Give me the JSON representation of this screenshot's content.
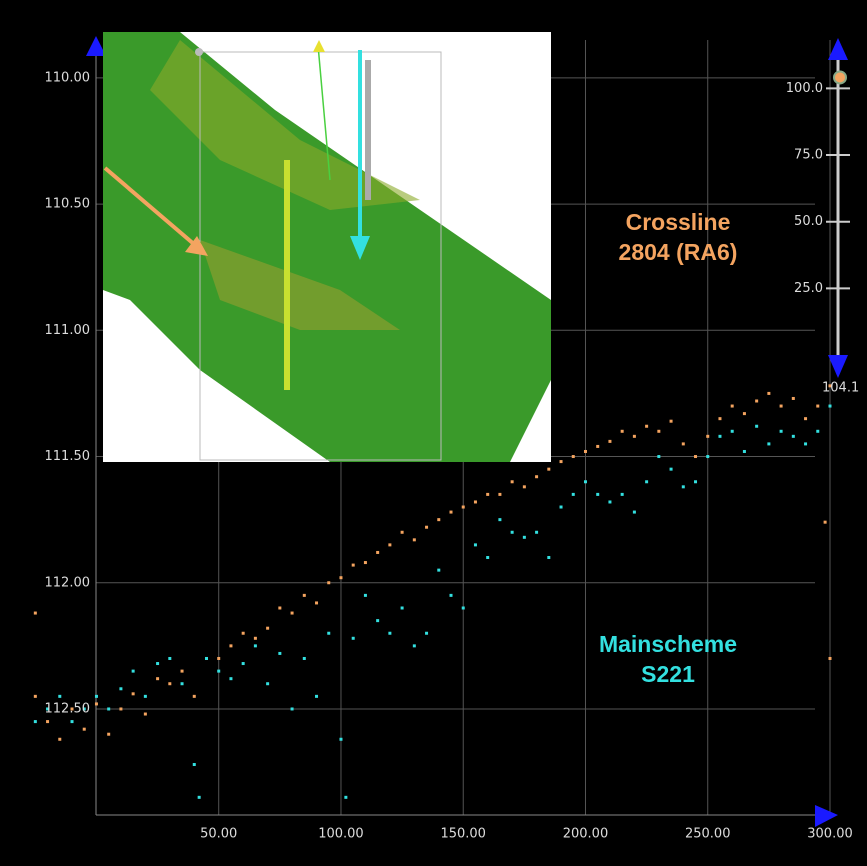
{
  "chart_data": {
    "type": "scatter",
    "xlim": [
      -28,
      300
    ],
    "ylim": [
      109.85,
      112.92
    ],
    "y_inverted": true,
    "grid": true,
    "xticks": [
      {
        "value": 50,
        "label": "50.00"
      },
      {
        "value": 100,
        "label": "100.00"
      },
      {
        "value": 150,
        "label": "150.00"
      },
      {
        "value": 200,
        "label": "200.00"
      },
      {
        "value": 250,
        "label": "250.00"
      },
      {
        "value": 300,
        "label": "300.00"
      }
    ],
    "yticks": [
      {
        "value": 110,
        "label": "110.00"
      },
      {
        "value": 110.5,
        "label": "110.50"
      },
      {
        "value": 111,
        "label": "111.00"
      },
      {
        "value": 111.5,
        "label": "111.50"
      },
      {
        "value": 112,
        "label": "112.00"
      },
      {
        "value": 112.5,
        "label": "112.50"
      }
    ],
    "series": [
      {
        "color": "#f4a460",
        "x": [
          -25,
          -20,
          -15,
          -10,
          -5,
          0,
          5,
          10,
          15,
          20,
          25,
          30,
          35,
          40,
          45,
          50,
          55,
          60,
          65,
          70,
          75,
          80,
          85,
          90,
          95,
          100,
          105,
          110,
          115,
          120,
          125,
          130,
          135,
          140,
          145,
          150,
          155,
          160,
          165,
          170,
          175,
          180,
          185,
          190,
          195,
          200,
          205,
          210,
          215,
          220,
          225,
          230,
          235,
          240,
          245,
          250,
          255,
          260,
          265,
          270,
          275,
          280,
          285,
          290,
          295,
          300,
          -25,
          298,
          300
        ],
        "values": [
          112.45,
          112.55,
          112.62,
          112.5,
          112.58,
          112.48,
          112.6,
          112.5,
          112.44,
          112.52,
          112.38,
          112.4,
          112.35,
          112.45,
          112.3,
          112.3,
          112.25,
          112.2,
          112.22,
          112.18,
          112.1,
          112.12,
          112.05,
          112.08,
          112.0,
          111.98,
          111.93,
          111.92,
          111.88,
          111.85,
          111.8,
          111.83,
          111.78,
          111.75,
          111.72,
          111.7,
          111.68,
          111.65,
          111.65,
          111.6,
          111.62,
          111.58,
          111.55,
          111.52,
          111.5,
          111.48,
          111.46,
          111.44,
          111.4,
          111.42,
          111.38,
          111.4,
          111.36,
          111.45,
          111.5,
          111.42,
          111.35,
          111.3,
          111.33,
          111.28,
          111.25,
          111.3,
          111.27,
          111.35,
          111.3,
          111.22,
          112.12,
          111.76,
          112.3
        ]
      },
      {
        "color": "#33e0e0",
        "x": [
          -25,
          -20,
          -15,
          -10,
          -5,
          0,
          5,
          10,
          15,
          20,
          25,
          30,
          35,
          40,
          42,
          45,
          50,
          55,
          60,
          65,
          70,
          75,
          80,
          85,
          90,
          95,
          100,
          102,
          105,
          110,
          115,
          120,
          125,
          130,
          135,
          140,
          145,
          150,
          155,
          160,
          165,
          170,
          175,
          180,
          185,
          190,
          195,
          200,
          205,
          210,
          215,
          220,
          225,
          230,
          235,
          240,
          245,
          250,
          255,
          260,
          265,
          270,
          275,
          280,
          285,
          290,
          295,
          300
        ],
        "values": [
          112.55,
          112.5,
          112.45,
          112.55,
          112.5,
          112.45,
          112.5,
          112.42,
          112.35,
          112.45,
          112.32,
          112.3,
          112.4,
          112.72,
          112.85,
          112.3,
          112.35,
          112.38,
          112.32,
          112.25,
          112.4,
          112.28,
          112.5,
          112.3,
          112.45,
          112.2,
          112.62,
          112.85,
          112.22,
          112.05,
          112.15,
          112.2,
          112.1,
          112.25,
          112.2,
          111.95,
          112.05,
          112.1,
          111.85,
          111.9,
          111.75,
          111.8,
          111.82,
          111.8,
          111.9,
          111.7,
          111.65,
          111.6,
          111.65,
          111.68,
          111.65,
          111.72,
          111.6,
          111.5,
          111.55,
          111.62,
          111.6,
          111.5,
          111.42,
          111.4,
          111.48,
          111.38,
          111.45,
          111.4,
          111.42,
          111.45,
          111.4,
          111.3
        ]
      }
    ],
    "annotations": [
      {
        "lines": [
          "Crossline",
          "2804 (RA6)"
        ],
        "color": "#f4a460"
      },
      {
        "lines": [
          "Mainscheme",
          "S221"
        ],
        "color": "#33e0e0"
      }
    ],
    "slider": {
      "ylim": [
        0,
        114.4
      ],
      "ticks": [
        {
          "value": 100,
          "label": "100.0"
        },
        {
          "value": 75,
          "label": "75.0"
        },
        {
          "value": 50,
          "label": "50.0"
        },
        {
          "value": 25,
          "label": "25.0"
        }
      ],
      "value": {
        "value": 104.1,
        "label": "104.1"
      }
    }
  }
}
